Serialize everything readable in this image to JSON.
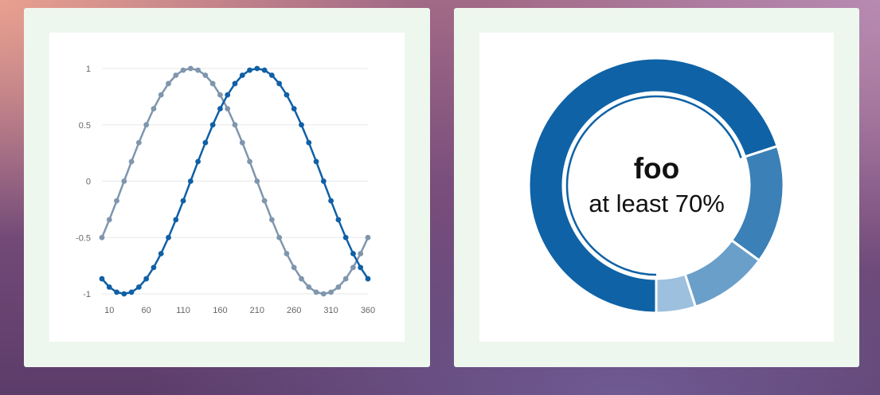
{
  "colors": {
    "series_sin": "#1060a6",
    "series_cos": "#7f96ad",
    "grid": "#e8e8e8",
    "tick_text": "#666666",
    "donut_slices": [
      "#0f62a6",
      "#3b80b6",
      "#6a9fca",
      "#9cc0dd"
    ]
  },
  "chart_data": [
    {
      "type": "line",
      "x_ticks": [
        10,
        60,
        110,
        160,
        210,
        260,
        310,
        360
      ],
      "y_ticks": [
        1,
        0.5,
        0,
        -0.5,
        -1
      ],
      "y_tick_labels": [
        "1",
        "0.5",
        "0",
        "-0.5",
        "-1"
      ],
      "xlim": [
        0,
        360
      ],
      "ylim": [
        -1,
        1
      ],
      "grid": true,
      "x": [
        0,
        10,
        20,
        30,
        40,
        50,
        60,
        70,
        80,
        90,
        100,
        110,
        120,
        130,
        140,
        150,
        160,
        170,
        180,
        190,
        200,
        210,
        220,
        230,
        240,
        250,
        260,
        270,
        280,
        290,
        300,
        310,
        320,
        330,
        340,
        350,
        360
      ],
      "series": [
        {
          "values": [
            -0.866,
            -0.94,
            -0.985,
            -1.0,
            -0.985,
            -0.94,
            -0.866,
            -0.766,
            -0.643,
            -0.5,
            -0.342,
            -0.174,
            0.0,
            0.174,
            0.342,
            0.5,
            0.643,
            0.766,
            0.866,
            0.94,
            0.985,
            1.0,
            0.985,
            0.94,
            0.866,
            0.766,
            0.643,
            0.5,
            0.342,
            0.174,
            0.0,
            -0.174,
            -0.342,
            -0.5,
            -0.643,
            -0.766,
            -0.866
          ]
        },
        {
          "values": [
            -0.5,
            -0.342,
            -0.174,
            0.0,
            0.174,
            0.342,
            0.5,
            0.643,
            0.766,
            0.866,
            0.94,
            0.985,
            1.0,
            0.985,
            0.94,
            0.866,
            0.766,
            0.643,
            0.5,
            0.342,
            0.174,
            0.0,
            -0.174,
            -0.342,
            -0.5,
            -0.643,
            -0.766,
            -0.866,
            -0.94,
            -0.985,
            -1.0,
            -0.985,
            -0.94,
            -0.866,
            -0.766,
            -0.643,
            -0.5
          ]
        }
      ]
    },
    {
      "type": "pie",
      "title": "foo",
      "subtitle": "at least 70%",
      "values": [
        70,
        15,
        10,
        5
      ]
    }
  ]
}
